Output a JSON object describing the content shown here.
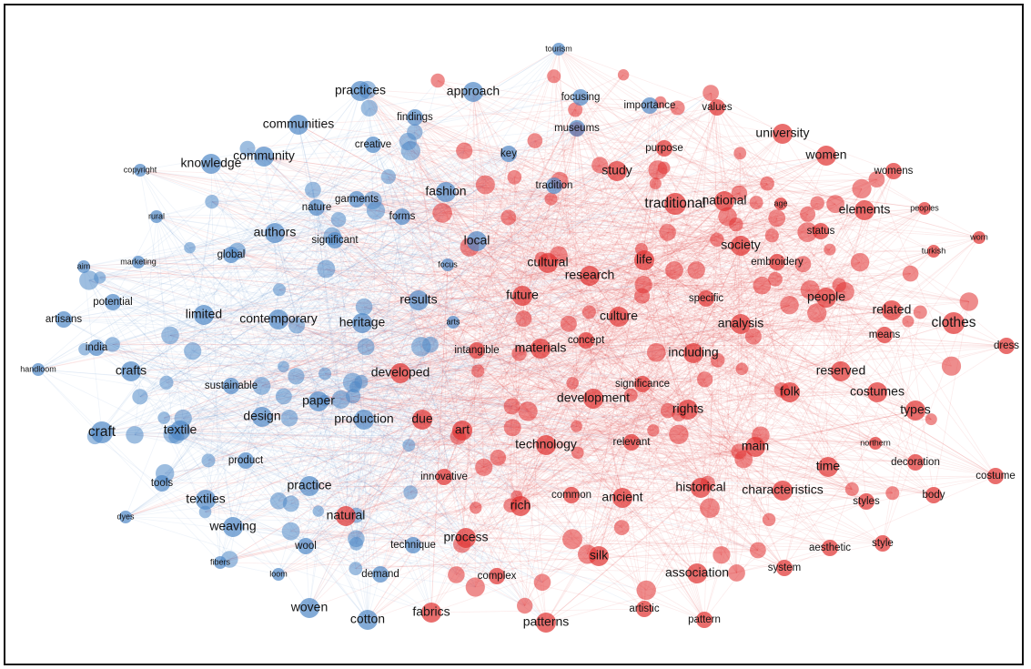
{
  "colors": {
    "blue": "#4f88c6",
    "red": "#e0302f",
    "background": "#ffffff"
  },
  "network": {
    "nodes": [
      {
        "label": "tourism",
        "cluster": "blue",
        "size": "xs"
      },
      {
        "label": "practices",
        "cluster": "blue",
        "size": "m"
      },
      {
        "label": "approach",
        "cluster": "blue",
        "size": "m"
      },
      {
        "label": "focusing",
        "cluster": "blue",
        "size": "s"
      },
      {
        "label": "importance",
        "cluster": "blue",
        "size": "s"
      },
      {
        "label": "values",
        "cluster": "red",
        "size": "s"
      },
      {
        "label": "findings",
        "cluster": "blue",
        "size": "s"
      },
      {
        "label": "communities",
        "cluster": "blue",
        "size": "m"
      },
      {
        "label": "museums",
        "cluster": "blue",
        "size": "s"
      },
      {
        "label": "university",
        "cluster": "red",
        "size": "m"
      },
      {
        "label": "creative",
        "cluster": "blue",
        "size": "s"
      },
      {
        "label": "purpose",
        "cluster": "red",
        "size": "s"
      },
      {
        "label": "copyright",
        "cluster": "blue",
        "size": "xs"
      },
      {
        "label": "knowledge",
        "cluster": "blue",
        "size": "m"
      },
      {
        "label": "community",
        "cluster": "blue",
        "size": "m"
      },
      {
        "label": "key",
        "cluster": "blue",
        "size": "s"
      },
      {
        "label": "women",
        "cluster": "red",
        "size": "m"
      },
      {
        "label": "womens",
        "cluster": "red",
        "size": "s"
      },
      {
        "label": "study",
        "cluster": "red",
        "size": "m"
      },
      {
        "label": "fashion",
        "cluster": "blue",
        "size": "m"
      },
      {
        "label": "tradition",
        "cluster": "blue",
        "size": "s"
      },
      {
        "label": "garments",
        "cluster": "blue",
        "size": "s"
      },
      {
        "label": "rural",
        "cluster": "blue",
        "size": "xs"
      },
      {
        "label": "nature",
        "cluster": "blue",
        "size": "s"
      },
      {
        "label": "forms",
        "cluster": "blue",
        "size": "s"
      },
      {
        "label": "traditional",
        "cluster": "red",
        "size": "l"
      },
      {
        "label": "national",
        "cluster": "red",
        "size": "m"
      },
      {
        "label": "age",
        "cluster": "red",
        "size": "xs"
      },
      {
        "label": "elements",
        "cluster": "red",
        "size": "m"
      },
      {
        "label": "peoples",
        "cluster": "red",
        "size": "xs"
      },
      {
        "label": "authors",
        "cluster": "blue",
        "size": "m"
      },
      {
        "label": "significant",
        "cluster": "blue",
        "size": "s"
      },
      {
        "label": "local",
        "cluster": "blue",
        "size": "m"
      },
      {
        "label": "status",
        "cluster": "red",
        "size": "s"
      },
      {
        "label": "worn",
        "cluster": "red",
        "size": "xs"
      },
      {
        "label": "society",
        "cluster": "red",
        "size": "m"
      },
      {
        "label": "turkish",
        "cluster": "red",
        "size": "xs"
      },
      {
        "label": "aim",
        "cluster": "blue",
        "size": "xs"
      },
      {
        "label": "marketing",
        "cluster": "blue",
        "size": "xs"
      },
      {
        "label": "global",
        "cluster": "blue",
        "size": "s"
      },
      {
        "label": "cultural",
        "cluster": "red",
        "size": "m"
      },
      {
        "label": "life",
        "cluster": "red",
        "size": "m"
      },
      {
        "label": "embroidery",
        "cluster": "red",
        "size": "s"
      },
      {
        "label": "focus",
        "cluster": "blue",
        "size": "xs"
      },
      {
        "label": "research",
        "cluster": "red",
        "size": "m"
      },
      {
        "label": "potential",
        "cluster": "blue",
        "size": "s"
      },
      {
        "label": "results",
        "cluster": "blue",
        "size": "m"
      },
      {
        "label": "future",
        "cluster": "red",
        "size": "m"
      },
      {
        "label": "specific",
        "cluster": "red",
        "size": "s"
      },
      {
        "label": "people",
        "cluster": "red",
        "size": "m"
      },
      {
        "label": "artisans",
        "cluster": "blue",
        "size": "s"
      },
      {
        "label": "limited",
        "cluster": "blue",
        "size": "m"
      },
      {
        "label": "contemporary",
        "cluster": "blue",
        "size": "m"
      },
      {
        "label": "related",
        "cluster": "red",
        "size": "m"
      },
      {
        "label": "heritage",
        "cluster": "blue",
        "size": "m"
      },
      {
        "label": "arts",
        "cluster": "blue",
        "size": "xs"
      },
      {
        "label": "culture",
        "cluster": "red",
        "size": "m"
      },
      {
        "label": "analysis",
        "cluster": "red",
        "size": "m"
      },
      {
        "label": "clothes",
        "cluster": "red",
        "size": "l"
      },
      {
        "label": "india",
        "cluster": "blue",
        "size": "s"
      },
      {
        "label": "concept",
        "cluster": "red",
        "size": "s"
      },
      {
        "label": "means",
        "cluster": "red",
        "size": "s"
      },
      {
        "label": "dress",
        "cluster": "red",
        "size": "s"
      },
      {
        "label": "handloom",
        "cluster": "blue",
        "size": "xs"
      },
      {
        "label": "intangible",
        "cluster": "red",
        "size": "s"
      },
      {
        "label": "materials",
        "cluster": "red",
        "size": "m"
      },
      {
        "label": "including",
        "cluster": "red",
        "size": "m"
      },
      {
        "label": "crafts",
        "cluster": "blue",
        "size": "m"
      },
      {
        "label": "developed",
        "cluster": "red",
        "size": "m"
      },
      {
        "label": "reserved",
        "cluster": "red",
        "size": "m"
      },
      {
        "label": "sustainable",
        "cluster": "blue",
        "size": "s"
      },
      {
        "label": "significance",
        "cluster": "red",
        "size": "s"
      },
      {
        "label": "folk",
        "cluster": "red",
        "size": "m"
      },
      {
        "label": "costumes",
        "cluster": "red",
        "size": "m"
      },
      {
        "label": "paper",
        "cluster": "blue",
        "size": "m"
      },
      {
        "label": "development",
        "cluster": "red",
        "size": "m"
      },
      {
        "label": "rights",
        "cluster": "red",
        "size": "m"
      },
      {
        "label": "design",
        "cluster": "blue",
        "size": "m"
      },
      {
        "label": "production",
        "cluster": "blue",
        "size": "m"
      },
      {
        "label": "due",
        "cluster": "red",
        "size": "m"
      },
      {
        "label": "types",
        "cluster": "red",
        "size": "m"
      },
      {
        "label": "craft",
        "cluster": "blue",
        "size": "l"
      },
      {
        "label": "textile",
        "cluster": "blue",
        "size": "m"
      },
      {
        "label": "art",
        "cluster": "red",
        "size": "m"
      },
      {
        "label": "northern",
        "cluster": "red",
        "size": "xs"
      },
      {
        "label": "technology",
        "cluster": "red",
        "size": "m"
      },
      {
        "label": "relevant",
        "cluster": "red",
        "size": "s"
      },
      {
        "label": "main",
        "cluster": "red",
        "size": "m"
      },
      {
        "label": "product",
        "cluster": "blue",
        "size": "s"
      },
      {
        "label": "decoration",
        "cluster": "red",
        "size": "s"
      },
      {
        "label": "tools",
        "cluster": "blue",
        "size": "s"
      },
      {
        "label": "time",
        "cluster": "red",
        "size": "m"
      },
      {
        "label": "costume",
        "cluster": "red",
        "size": "s"
      },
      {
        "label": "innovative",
        "cluster": "red",
        "size": "s"
      },
      {
        "label": "practice",
        "cluster": "blue",
        "size": "m"
      },
      {
        "label": "historical",
        "cluster": "red",
        "size": "m"
      },
      {
        "label": "characteristics",
        "cluster": "red",
        "size": "m"
      },
      {
        "label": "body",
        "cluster": "red",
        "size": "s"
      },
      {
        "label": "textiles",
        "cluster": "blue",
        "size": "m"
      },
      {
        "label": "common",
        "cluster": "red",
        "size": "s"
      },
      {
        "label": "ancient",
        "cluster": "red",
        "size": "m"
      },
      {
        "label": "rich",
        "cluster": "red",
        "size": "m"
      },
      {
        "label": "styles",
        "cluster": "red",
        "size": "s"
      },
      {
        "label": "dyes",
        "cluster": "blue",
        "size": "xs"
      },
      {
        "label": "natural",
        "cluster": "red",
        "size": "m"
      },
      {
        "label": "weaving",
        "cluster": "blue",
        "size": "m"
      },
      {
        "label": "wool",
        "cluster": "blue",
        "size": "s"
      },
      {
        "label": "technique",
        "cluster": "blue",
        "size": "s"
      },
      {
        "label": "process",
        "cluster": "red",
        "size": "m"
      },
      {
        "label": "style",
        "cluster": "red",
        "size": "s"
      },
      {
        "label": "aesthetic",
        "cluster": "red",
        "size": "s"
      },
      {
        "label": "fibers",
        "cluster": "blue",
        "size": "xs"
      },
      {
        "label": "silk",
        "cluster": "red",
        "size": "m"
      },
      {
        "label": "system",
        "cluster": "red",
        "size": "s"
      },
      {
        "label": "loom",
        "cluster": "blue",
        "size": "xs"
      },
      {
        "label": "demand",
        "cluster": "blue",
        "size": "s"
      },
      {
        "label": "complex",
        "cluster": "red",
        "size": "s"
      },
      {
        "label": "association",
        "cluster": "red",
        "size": "m"
      },
      {
        "label": "woven",
        "cluster": "blue",
        "size": "m"
      },
      {
        "label": "cotton",
        "cluster": "blue",
        "size": "m"
      },
      {
        "label": "fabrics",
        "cluster": "red",
        "size": "m"
      },
      {
        "label": "artistic",
        "cluster": "red",
        "size": "s"
      },
      {
        "label": "patterns",
        "cluster": "red",
        "size": "m"
      },
      {
        "label": "pattern",
        "cluster": "red",
        "size": "s"
      }
    ]
  }
}
